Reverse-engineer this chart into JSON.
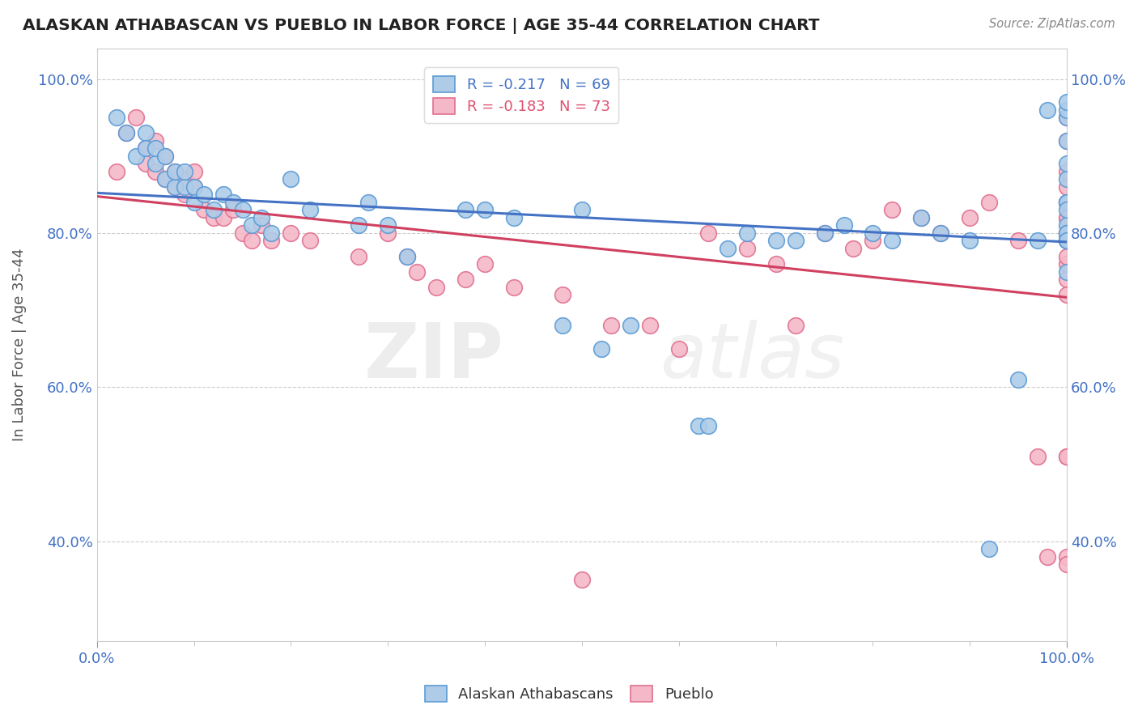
{
  "title": "ALASKAN ATHABASCAN VS PUEBLO IN LABOR FORCE | AGE 35-44 CORRELATION CHART",
  "source_text": "Source: ZipAtlas.com",
  "ylabel": "In Labor Force | Age 35-44",
  "xlim": [
    0.0,
    1.0
  ],
  "ylim": [
    0.27,
    1.04
  ],
  "ytick_labels": [
    "40.0%",
    "60.0%",
    "80.0%",
    "100.0%"
  ],
  "ytick_values": [
    0.4,
    0.6,
    0.8,
    1.0
  ],
  "legend_blue_text": "R = -0.217   N = 69",
  "legend_pink_text": "R = -0.183   N = 73",
  "blue_R": -0.217,
  "pink_R": -0.183,
  "blue_color": "#aecce8",
  "pink_color": "#f4b8c8",
  "blue_edge_color": "#5b9bd5",
  "pink_edge_color": "#e07090",
  "blue_line_color": "#4472c4",
  "pink_line_color": "#d04060",
  "watermark_zip": "ZIP",
  "watermark_atlas": "atlas",
  "blue_points_x": [
    0.02,
    0.03,
    0.04,
    0.05,
    0.05,
    0.06,
    0.06,
    0.07,
    0.07,
    0.08,
    0.08,
    0.09,
    0.09,
    0.1,
    0.1,
    0.11,
    0.12,
    0.13,
    0.14,
    0.15,
    0.16,
    0.17,
    0.18,
    0.2,
    0.22,
    0.27,
    0.28,
    0.3,
    0.32,
    0.38,
    0.4,
    0.43,
    0.48,
    0.5,
    0.52,
    0.55,
    0.62,
    0.63,
    0.65,
    0.67,
    0.7,
    0.72,
    0.75,
    0.77,
    0.8,
    0.82,
    0.85,
    0.87,
    0.9,
    0.92,
    0.95,
    0.97,
    0.98,
    1.0,
    1.0,
    1.0,
    1.0,
    1.0,
    1.0,
    1.0,
    1.0,
    1.0,
    1.0,
    1.0,
    1.0,
    1.0,
    1.0,
    1.0,
    1.0
  ],
  "blue_points_y": [
    0.95,
    0.93,
    0.9,
    0.93,
    0.91,
    0.89,
    0.91,
    0.87,
    0.9,
    0.86,
    0.88,
    0.86,
    0.88,
    0.86,
    0.84,
    0.85,
    0.83,
    0.85,
    0.84,
    0.83,
    0.81,
    0.82,
    0.8,
    0.87,
    0.83,
    0.81,
    0.84,
    0.81,
    0.77,
    0.83,
    0.83,
    0.82,
    0.68,
    0.83,
    0.65,
    0.68,
    0.55,
    0.55,
    0.78,
    0.8,
    0.79,
    0.79,
    0.8,
    0.81,
    0.8,
    0.79,
    0.82,
    0.8,
    0.79,
    0.39,
    0.61,
    0.79,
    0.96,
    0.84,
    0.81,
    0.8,
    0.79,
    0.79,
    0.84,
    0.87,
    0.89,
    0.92,
    0.95,
    0.96,
    0.97,
    0.83,
    0.8,
    0.79,
    0.75
  ],
  "pink_points_x": [
    0.02,
    0.03,
    0.04,
    0.05,
    0.05,
    0.06,
    0.06,
    0.07,
    0.07,
    0.08,
    0.08,
    0.09,
    0.09,
    0.1,
    0.1,
    0.11,
    0.12,
    0.13,
    0.14,
    0.15,
    0.16,
    0.17,
    0.18,
    0.2,
    0.22,
    0.27,
    0.3,
    0.32,
    0.33,
    0.35,
    0.38,
    0.4,
    0.43,
    0.48,
    0.5,
    0.53,
    0.57,
    0.6,
    0.63,
    0.67,
    0.7,
    0.72,
    0.75,
    0.78,
    0.8,
    0.82,
    0.85,
    0.87,
    0.9,
    0.92,
    0.95,
    0.97,
    0.98,
    1.0,
    1.0,
    1.0,
    1.0,
    1.0,
    1.0,
    1.0,
    1.0,
    1.0,
    1.0,
    1.0,
    1.0,
    1.0,
    1.0,
    1.0,
    1.0,
    1.0,
    1.0,
    1.0,
    1.0
  ],
  "pink_points_y": [
    0.88,
    0.93,
    0.95,
    0.91,
    0.89,
    0.92,
    0.88,
    0.9,
    0.87,
    0.88,
    0.86,
    0.87,
    0.85,
    0.88,
    0.86,
    0.83,
    0.82,
    0.82,
    0.83,
    0.8,
    0.79,
    0.81,
    0.79,
    0.8,
    0.79,
    0.77,
    0.8,
    0.77,
    0.75,
    0.73,
    0.74,
    0.76,
    0.73,
    0.72,
    0.35,
    0.68,
    0.68,
    0.65,
    0.8,
    0.78,
    0.76,
    0.68,
    0.8,
    0.78,
    0.79,
    0.83,
    0.82,
    0.8,
    0.82,
    0.84,
    0.79,
    0.51,
    0.38,
    0.84,
    0.82,
    0.8,
    0.79,
    0.76,
    0.74,
    0.72,
    0.51,
    0.51,
    0.38,
    0.37,
    0.77,
    0.79,
    0.8,
    0.82,
    0.84,
    0.86,
    0.88,
    0.92,
    0.95
  ]
}
